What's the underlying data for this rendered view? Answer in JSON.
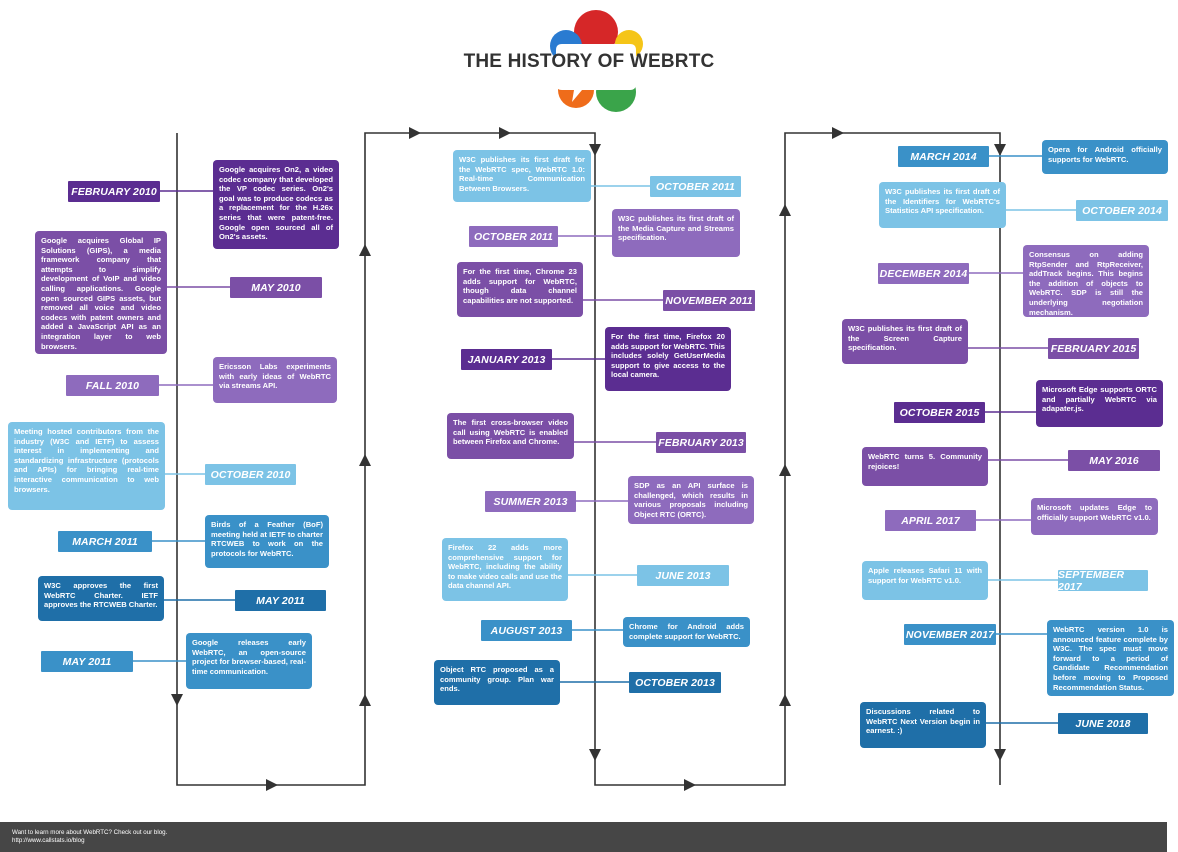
{
  "title": "THE HISTORY OF WEBRTC",
  "colors": {
    "deep_purple": "#5b2d91",
    "mid_purple": "#7b4fa6",
    "light_purple": "#8e6bbd",
    "light_blue": "#7cc3e6",
    "mid_blue": "#3a91c8",
    "dark_blue": "#1f6fa8",
    "line": "#333333",
    "logo_red": "#d62728",
    "logo_yellow": "#f5c518",
    "logo_green": "#3aa44a",
    "logo_orange": "#ef6c1a",
    "logo_blue": "#2a7bd1",
    "footer_bg": "#464646"
  },
  "events": [
    {
      "date": "FEBRUARY 2010",
      "desc": "Google acquires On2, a video codec company that developed the VP codec series. On2's goal was to produce codecs as a replacement for the H.26x series that were patent-free. Google open sourced all of On2's assets.",
      "tone": "deep_purple"
    },
    {
      "date": "MAY 2010",
      "desc": "Google acquires Global IP Solutions (GIPS), a media framework company that attempts to simplify development of VoIP and video calling applications. Google open sourced GIPS assets, but removed all voice and video codecs with patent owners and added a JavaScript API as an integration layer to web browsers.",
      "tone": "mid_purple"
    },
    {
      "date": "FALL 2010",
      "desc": "Ericsson Labs experiments with early ideas of WebRTC via streams API.",
      "tone": "light_purple"
    },
    {
      "date": "OCTOBER 2010",
      "desc": "Meeting hosted contributors from the industry (W3C and IETF) to assess interest in implementing and standardizing infrastructure (protocols and APIs) for bringing real-time interactive communication to web browsers.",
      "tone": "light_blue"
    },
    {
      "date": "MARCH 2011",
      "desc": "Birds of a Feather (BoF) meeting held at IETF to charter RTCWEB to work on the protocols for WebRTC.",
      "tone": "mid_blue"
    },
    {
      "date": "MAY 2011",
      "desc": "W3C approves the first WebRTC Charter. IETF approves the RTCWEB Charter.",
      "tone": "dark_blue"
    },
    {
      "date": "MAY 2011",
      "desc": "Google releases early WebRTC, an open-source project for browser-based, real-time communication.",
      "tone": "mid_blue"
    },
    {
      "date": "OCTOBER 2011",
      "desc": "W3C publishes its first draft for the WebRTC spec, WebRTC 1.0: Real-time Communication Between Browsers.",
      "tone": "light_blue"
    },
    {
      "date": "OCTOBER 2011",
      "desc": "W3C publishes its first draft of the Media Capture and Streams specification.",
      "tone": "light_purple"
    },
    {
      "date": "NOVEMBER 2011",
      "desc": "For the first time, Chrome 23 adds support for WebRTC, though data channel capabilities are not supported.",
      "tone": "mid_purple"
    },
    {
      "date": "JANUARY 2013",
      "desc": "For the first time, Firefox 20 adds support for WebRTC. This includes solely GetUserMedia support to give access to the local camera.",
      "tone": "deep_purple"
    },
    {
      "date": "FEBRUARY 2013",
      "desc": "The first cross-browser video call using WebRTC is enabled between Firefox and Chrome.",
      "tone": "mid_purple"
    },
    {
      "date": "SUMMER 2013",
      "desc": "SDP as an API surface is challenged, which results in various proposals including Object RTC (ORTC).",
      "tone": "light_purple"
    },
    {
      "date": "JUNE 2013",
      "desc": "Firefox 22 adds more comprehensive support for WebRTC, including the ability to make video calls and use the data channel API.",
      "tone": "light_blue"
    },
    {
      "date": "AUGUST 2013",
      "desc": "Chrome for Android adds complete support for WebRTC.",
      "tone": "mid_blue"
    },
    {
      "date": "OCTOBER 2013",
      "desc": "Object RTC proposed as a community group. Plan war ends.",
      "tone": "dark_blue"
    },
    {
      "date": "MARCH 2014",
      "desc": "Opera for Android officially supports for WebRTC.",
      "tone": "mid_blue"
    },
    {
      "date": "OCTOBER 2014",
      "desc": "W3C publishes its first draft of the Identifiers for WebRTC's Statistics API specification.",
      "tone": "light_blue"
    },
    {
      "date": "DECEMBER 2014",
      "desc": "Consensus on adding RtpSender and RtpReceiver, addTrack begins. This begins the addition of objects to WebRTC. SDP is still the underlying negotiation mechanism.",
      "tone": "light_purple"
    },
    {
      "date": "FEBRUARY 2015",
      "desc": "W3C publishes its first draft of the Screen Capture specification.",
      "tone": "mid_purple"
    },
    {
      "date": "OCTOBER 2015",
      "desc": "Microsoft Edge supports ORTC and partially WebRTC via adapater.js.",
      "tone": "deep_purple"
    },
    {
      "date": "MAY 2016",
      "desc": "WebRTC turns 5. Community rejoices!",
      "tone": "mid_purple"
    },
    {
      "date": "APRIL 2017",
      "desc": "Microsoft updates Edge to officially support WebRTC v1.0.",
      "tone": "light_purple"
    },
    {
      "date": "SEPTEMBER 2017",
      "desc": "Apple releases Safari 11 with support for WebRTC v1.0.",
      "tone": "light_blue"
    },
    {
      "date": "NOVEMBER 2017",
      "desc": "WebRTC version 1.0 is announced feature complete by W3C. The spec must move forward to a period of Candidate Recommendation before moving to Proposed Recommendation Status.",
      "tone": "mid_blue"
    },
    {
      "date": "JUNE 2018",
      "desc": "Discussions related to WebRTC Next Version begin in earnest. :)",
      "tone": "dark_blue"
    }
  ],
  "footer": {
    "line1": "Want to learn more about WebRTC? Check out our blog.",
    "line2": "http://www.callstats.io/blog"
  }
}
